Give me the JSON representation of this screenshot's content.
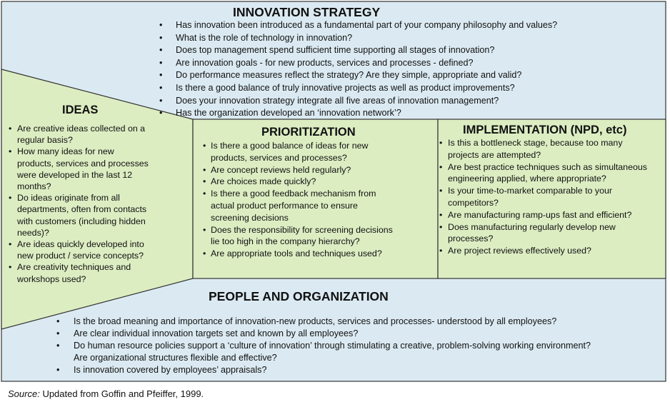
{
  "colors": {
    "outer_fill": "#dbeaf2",
    "green_fill": "#dcedc2",
    "border": "#333333"
  },
  "strategy": {
    "title": "INNOVATION STRATEGY",
    "items": [
      "Has innovation been introduced as a fundamental part of your company philosophy and values?",
      "What is the role of technology in innovation?",
      "Does top management spend sufficient time supporting all stages of innovation?",
      "Are innovation goals - for new products, services and processes - defined?",
      "Do performance measures reflect the strategy? Are they simple, appropriate and valid?",
      "Is there a good balance of truly innovative projects as well as product improvements?",
      "Does your innovation strategy integrate all five areas of innovation management?",
      "Has the organization developed an ‘innovation network’?"
    ]
  },
  "ideas": {
    "title": "IDEAS",
    "items": [
      [
        "Are creative ideas collected on a",
        "regular basis?"
      ],
      [
        "How  many ideas for new",
        "products, services and processes",
        "were developed in the last 12",
        "months?"
      ],
      [
        "Do ideas originate from all",
        "departments, often from contacts",
        "with customers (including hidden",
        "needs)?"
      ],
      [
        "Are ideas quickly developed into",
        "new  product / service concepts?"
      ],
      [
        "Are creativity techniques and",
        "workshops used?"
      ]
    ]
  },
  "prioritization": {
    "title": "PRIORITIZATION",
    "items": [
      [
        "Is there a good balance of ideas for new",
        "products, services and processes?"
      ],
      [
        "Are concept reviews held regularly?"
      ],
      [
        "Are choices made quickly?"
      ],
      [
        "Is there a good feedback  mechanism from",
        "actual  product performance to  ensure",
        "screening decisions"
      ],
      [
        "Does the responsibility for  screening decisions",
        "lie too  high in the company hierarchy?"
      ],
      [
        "Are appropriate tools and techniques used?"
      ]
    ]
  },
  "implementation": {
    "title": "IMPLEMENTATION (NPD, etc)",
    "items": [
      [
        "Is this a bottleneck stage, because too many",
        "projects are attempted?"
      ],
      [
        "Are best practice techniques such as simultaneous",
        "engineering applied, where appropriate?"
      ],
      [
        "Is your time-to-market comparable to your",
        "competitors?"
      ],
      [
        "Are manufacturing ramp-ups fast and efficient?"
      ],
      [
        "Does manufacturing regularly develop new",
        "processes?"
      ],
      [
        "Are project reviews effectively used?"
      ]
    ]
  },
  "people": {
    "title": "PEOPLE AND ORGANIZATION",
    "items": [
      [
        "Is the broad meaning and importance of innovation-new  products, services and processes- understood by all employees?"
      ],
      [
        "Are clear individual innovation targets set and known by all employees?"
      ],
      [
        "Do human resource policies support a ‘culture of innovation’ through stimulating a creative, problem-solving working environment?",
        "Are organizational structures flexible and effective?"
      ],
      [
        "Is innovation covered by employees’ appraisals?"
      ]
    ]
  },
  "source": {
    "label": "Source:",
    "text": "Updated from Goffin and Pfeiffer, 1999."
  }
}
